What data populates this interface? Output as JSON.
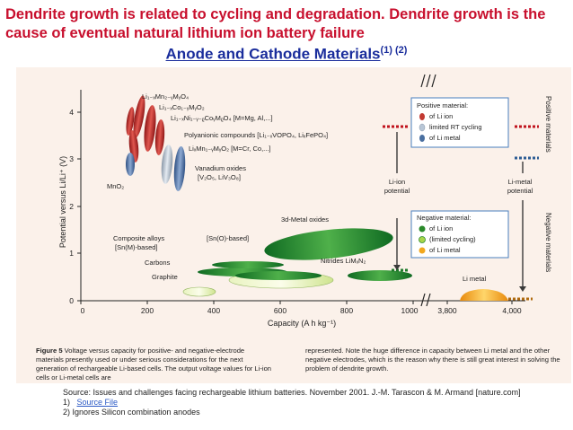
{
  "slide": {
    "headline": "Dendrite growth is related to cycling and degradation. Dendrite growth is the cause of eventual natural lithium ion battery failure",
    "subtitle": "Anode and Cathode Materials",
    "subtitle_refs": "(1) (2)"
  },
  "chart_data": {
    "type": "scatter",
    "xlabel": "Capacity (A h kg⁻¹)",
    "ylabel": "Potential versus Li/Li⁺ (V)",
    "x_ticks": [
      "0",
      "200",
      "400",
      "600",
      "800",
      "1000",
      "3,800",
      "4,000"
    ],
    "y_ticks": [
      "0",
      "1",
      "2",
      "3",
      "4"
    ],
    "ylim": [
      0,
      4.6
    ],
    "axis_break_note": "x axis broken between 1000 and 3,800",
    "right_labels": [
      "Positive materials",
      "Negative materials"
    ],
    "positive_legend": {
      "title": "Positive material:",
      "items": [
        "of Li ion",
        "limited RT cycling",
        "of Li metal"
      ],
      "colors": [
        "#c23a32",
        "#b8c6d6",
        "#4a6fa0"
      ]
    },
    "negative_legend": {
      "title": "Negative material:",
      "items": [
        "of Li ion",
        "(limited cycling)",
        "of Li metal"
      ],
      "colors": [
        "#2b8a2b",
        "#a8d64a",
        "#f2a81e"
      ]
    },
    "markers": [
      "Li-ion potential",
      "Li-metal potential"
    ],
    "positive_labels": [
      "Li₁₋ₓMn₂₋ᵧMᵧO₄",
      "Li₁₋ₓCo₁₋ᵧMᵧO₂",
      "Li₁₋ₓNi₁₋ᵧ₋ᵨCoᵧMᵨO₄ [M=Mg, Al,...]",
      "Polyanionic compounds [Li₁₋ₓVOPO₄, LiₓFePO₄]",
      "LiₓMn₁₋ᵧMᵧO₂ [M=Cr, Co,...]",
      "Vanadium oxides",
      "[V₂O₅, LiV₃O₈]",
      "MnO₂"
    ],
    "negative_labels": [
      "3d-Metal oxides",
      "Composite alloys",
      "[Sn(M)-based]",
      "[Sn(O)-based]",
      "Carbons",
      "Graphite",
      "Nitrides LiMₓN₂",
      "Li metal"
    ],
    "regions": [
      {
        "name": "Li₁₋ₓMn₂₋ᵧMᵧO₄",
        "x": [
          130,
          160
        ],
        "y": [
          3.8,
          4.2
        ],
        "class": "positive Li ion"
      },
      {
        "name": "Li₁₋ₓCo₁₋ᵧMᵧO₂",
        "x": [
          140,
          190
        ],
        "y": [
          3.6,
          4.2
        ],
        "class": "positive Li ion"
      },
      {
        "name": "Li₁₋ₓNi₁₋ᵧ₋ᵨCoᵧMᵨO₄",
        "x": [
          150,
          210
        ],
        "y": [
          3.4,
          4.0
        ],
        "class": "positive Li ion"
      },
      {
        "name": "Polyanionic compounds",
        "x": [
          110,
          175
        ],
        "y": [
          3.2,
          4.0
        ],
        "class": "positive Li ion"
      },
      {
        "name": "LiₓMn₁₋ᵧMᵧO₂",
        "x": [
          180,
          220
        ],
        "y": [
          2.8,
          3.6
        ],
        "class": "positive limited RT cycling"
      },
      {
        "name": "Vanadium oxides",
        "x": [
          200,
          240
        ],
        "y": [
          2.3,
          3.4
        ],
        "class": "positive Li metal"
      },
      {
        "name": "MnO₂",
        "x": [
          120,
          150
        ],
        "y": [
          2.6,
          3.3
        ],
        "class": "positive Li metal"
      },
      {
        "name": "3d-Metal oxides",
        "x": [
          590,
          980
        ],
        "y": [
          1.2,
          2.0
        ],
        "class": "negative Li ion"
      },
      {
        "name": "Composite alloys",
        "x": [
          370,
          590
        ],
        "y": [
          0.3,
          0.6
        ],
        "class": "negative limited cycling"
      },
      {
        "name": "Carbons",
        "x": [
          330,
          620
        ],
        "y": [
          0.05,
          0.85
        ],
        "class": "negative Li ion"
      },
      {
        "name": "Graphite",
        "x": [
          300,
          380
        ],
        "y": [
          0.05,
          0.25
        ],
        "class": "negative limited cycling"
      },
      {
        "name": "Nitrides LiMₓN₂",
        "x": [
          790,
          1000
        ],
        "y": [
          0.6,
          1.0
        ],
        "class": "negative Li ion"
      },
      {
        "name": "Li metal",
        "x": [
          3830,
          3990
        ],
        "y": [
          0,
          0.15
        ],
        "class": "negative Li metal"
      }
    ]
  },
  "caption": {
    "fig_label": "Figure 5",
    "col1": " Voltage versus capacity for positive- and negative-electrode materials presently used or under serious considerations for the next generation of rechargeable Li-based cells. The output voltage values for Li-ion cells or Li-metal cells are",
    "col2": "represented. Note the huge difference in capacity between Li metal and the other negative electrodes, which is the reason why there is still great interest in solving the problem of dendrite growth."
  },
  "source": {
    "line1": "Source: Issues and challenges facing rechargeable lithium batteries. November 2001. J.-M. Tarascon & M. Armand [nature.com]",
    "note1_num": "1)",
    "note1_link": "Source File",
    "note2": "2)   Ignores Silicon combination anodes"
  }
}
